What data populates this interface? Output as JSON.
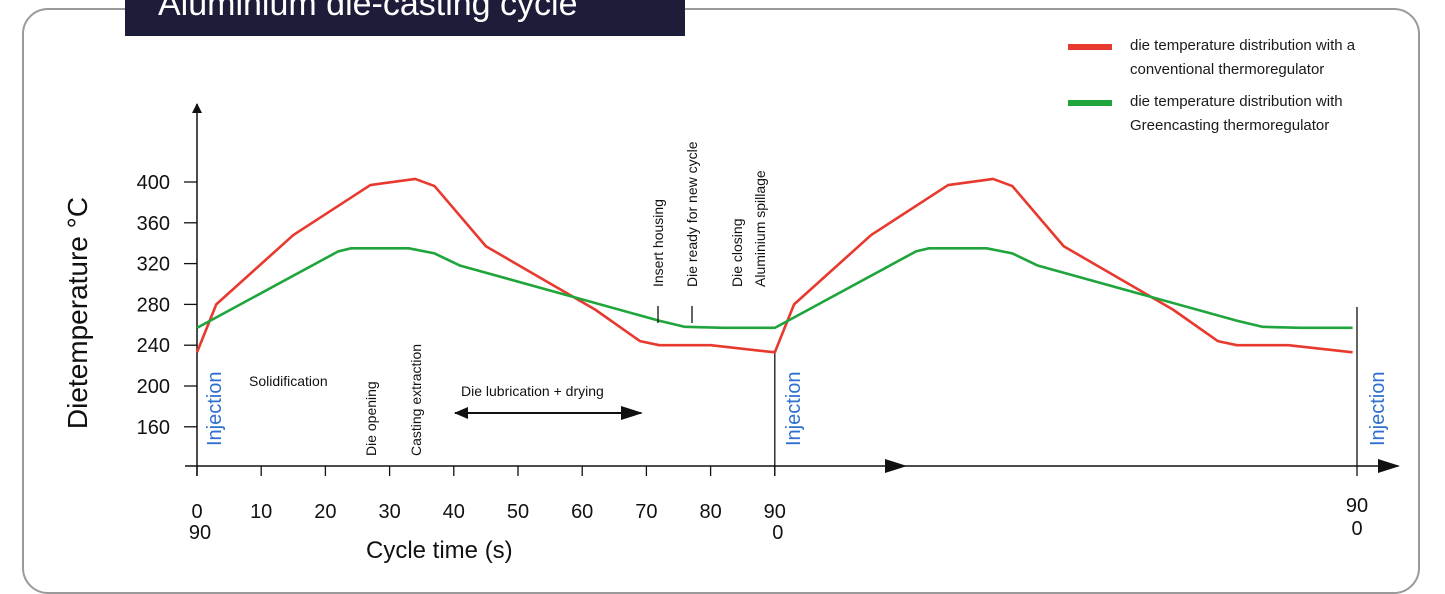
{
  "title": "Aluminium die-casting cycle",
  "legend": [
    {
      "label": "die temperature distribution with a conventional thermoregulator",
      "color": "#e8392e"
    },
    {
      "label": "die temperature distribution with Greencasting thermoregulator",
      "color": "#1fa53c"
    }
  ],
  "chart_data": {
    "type": "line",
    "title": "Aluminium die-casting cycle",
    "xlabel": "Cycle time (s)",
    "ylabel": "Dietemperature °C",
    "xlim": [
      0,
      180
    ],
    "ylim": [
      120,
      410
    ],
    "x_ticks": [
      "0",
      "10",
      "20",
      "30",
      "40",
      "50",
      "60",
      "70",
      "80",
      "90"
    ],
    "x_ticks_second_row": {
      "0": "90",
      "90": "0"
    },
    "x_end_label": [
      "90",
      "0"
    ],
    "y_ticks": [
      160,
      200,
      240,
      280,
      320,
      360,
      400
    ],
    "series": [
      {
        "name": "die temperature distribution with a conventional thermoregulator",
        "color": "#e8392e",
        "x": [
          0,
          3,
          15,
          27,
          34,
          37,
          45,
          62,
          69,
          72,
          80,
          90,
          93,
          105,
          117,
          124,
          127,
          135,
          152,
          159,
          162,
          170,
          180
        ],
        "y": [
          233,
          280,
          348,
          397,
          403,
          396,
          337,
          275,
          244,
          240,
          240,
          233,
          280,
          348,
          397,
          403,
          396,
          337,
          275,
          244,
          240,
          240,
          233
        ]
      },
      {
        "name": "die temperature distribution with Greencasting thermoregulator",
        "color": "#1fa53c",
        "x": [
          0,
          22,
          24,
          33,
          37,
          41,
          72,
          76,
          82,
          90,
          112,
          114,
          123,
          127,
          131,
          162,
          166,
          172,
          180
        ],
        "y": [
          257,
          332,
          335,
          335,
          330,
          318,
          264,
          258,
          257,
          257,
          332,
          335,
          335,
          330,
          318,
          264,
          258,
          257,
          257
        ]
      }
    ],
    "annotations": {
      "injection": "Injection",
      "solidification": "Solidification",
      "die_opening": "Die opening",
      "casting_extraction": "Casting extraction",
      "die_lubrication": "Die lubrication + drying",
      "insert_housing": "Insert housing",
      "die_ready": "Die ready for new cycle",
      "die_closing": "Die closing",
      "aluminium_spillage": "Aluminium spillage"
    }
  }
}
